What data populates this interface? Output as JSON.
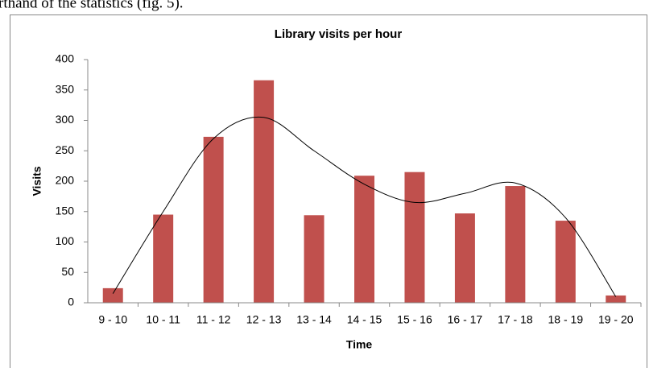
{
  "page_text": "rthand of the statistics (fig. 5).",
  "chart_data": {
    "type": "bar",
    "title": "Library visits per hour",
    "x_label": "Time",
    "y_label": "Visits",
    "categories": [
      "9 - 10",
      "10 - 11",
      "11 - 12",
      "12 - 13",
      "13 - 14",
      "14 - 15",
      "15 - 16",
      "16 - 17",
      "17 - 18",
      "18 - 19",
      "19 - 20"
    ],
    "values": [
      24,
      145,
      273,
      366,
      144,
      209,
      215,
      147,
      192,
      135,
      12
    ],
    "color": "#c0504d",
    "trendline": {
      "color": "#000000",
      "values": [
        15,
        150,
        270,
        305,
        250,
        195,
        165,
        180,
        197,
        140,
        10
      ]
    },
    "ylim": [
      0,
      400
    ],
    "yticks": [
      0,
      50,
      100,
      150,
      200,
      250,
      300,
      350,
      400
    ],
    "grid": false
  }
}
